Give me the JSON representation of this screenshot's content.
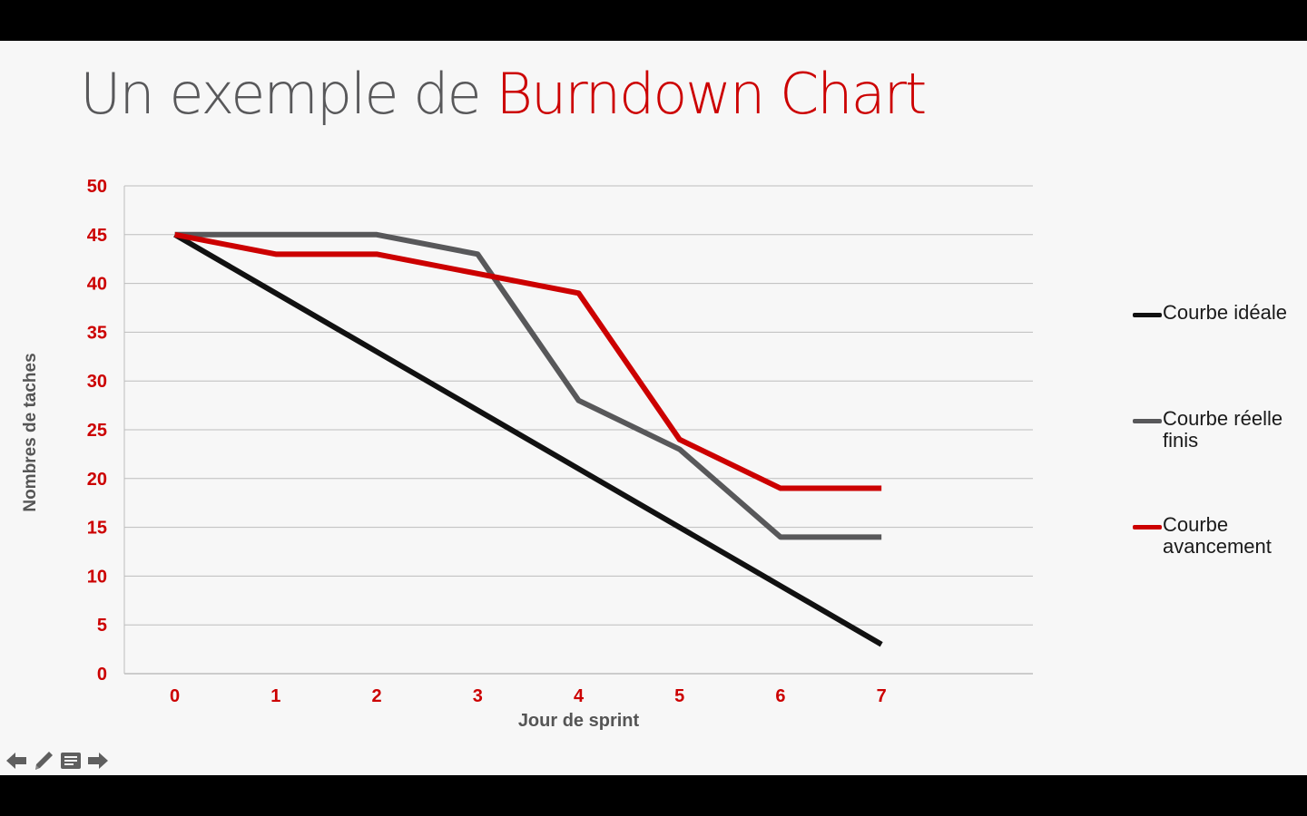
{
  "slide": {
    "title_part1": "Un exemple de ",
    "title_part2": "Burndown Chart"
  },
  "colors": {
    "accent": "#cc0000",
    "title_gray": "#58585a",
    "grid": "#bdbdbd",
    "axis_title": "#555555",
    "background": "#f7f7f7"
  },
  "navigation": {
    "items": [
      {
        "name": "previous-arrow-icon"
      },
      {
        "name": "pencil-icon"
      },
      {
        "name": "notes-icon"
      },
      {
        "name": "next-arrow-icon"
      }
    ]
  },
  "chart_data": {
    "type": "line",
    "xlabel": "Jour de sprint",
    "ylabel": "Nombres de taches",
    "x": [
      0,
      1,
      2,
      3,
      4,
      5,
      6,
      7
    ],
    "xlim": [
      -0.5,
      8.5
    ],
    "ylim": [
      0,
      50
    ],
    "yticks": [
      0,
      5,
      10,
      15,
      20,
      25,
      30,
      35,
      40,
      45,
      50
    ],
    "grid": true,
    "legend_position": "right",
    "series": [
      {
        "name": "Courbe idéale",
        "color": "#111111",
        "values": [
          45,
          39,
          33,
          27,
          21,
          15,
          9,
          3
        ]
      },
      {
        "name": "Courbe réelle finis",
        "color": "#58585a",
        "values": [
          45,
          45,
          45,
          43,
          28,
          23,
          14,
          14
        ]
      },
      {
        "name": "Courbe avancement",
        "color": "#cc0000",
        "values": [
          45,
          43,
          43,
          41,
          39,
          24,
          19,
          19
        ]
      }
    ]
  }
}
